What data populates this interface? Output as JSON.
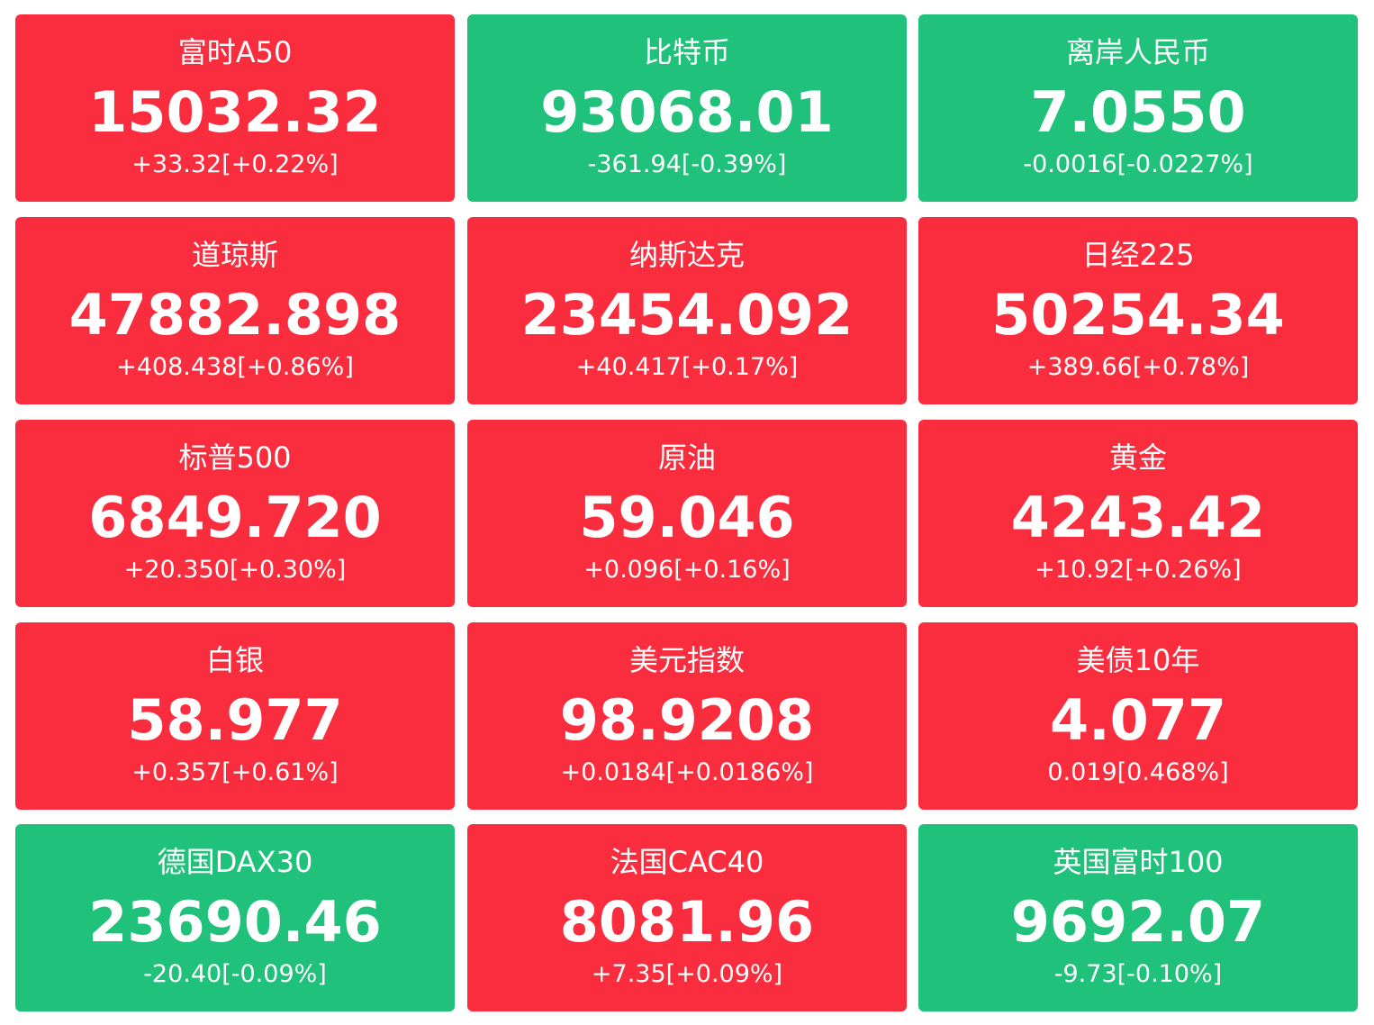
{
  "tiles": [
    {
      "name": "富时A50",
      "price": "15032.32",
      "change": "+33.32[+0.22%]",
      "color": "#fa2d3e"
    },
    {
      "name": "比特币",
      "price": "93068.01",
      "change": "-361.94[-0.39%]",
      "color": "#1fc17b"
    },
    {
      "name": "离岸人民币",
      "price": "7.0550",
      "change": "-0.0016[-0.0227%]",
      "color": "#1fc17b"
    },
    {
      "name": "道琼斯",
      "price": "47882.898",
      "change": "+408.438[+0.86%]",
      "color": "#fa2d3e"
    },
    {
      "name": "纳斯达克",
      "price": "23454.092",
      "change": "+40.417[+0.17%]",
      "color": "#fa2d3e"
    },
    {
      "name": "日经225",
      "price": "50254.34",
      "change": "+389.66[+0.78%]",
      "color": "#fa2d3e"
    },
    {
      "name": "标普500",
      "price": "6849.720",
      "change": "+20.350[+0.30%]",
      "color": "#fa2d3e"
    },
    {
      "name": "原油",
      "price": "59.046",
      "change": "+0.096[+0.16%]",
      "color": "#fa2d3e"
    },
    {
      "name": "黄金",
      "price": "4243.42",
      "change": "+10.92[+0.26%]",
      "color": "#fa2d3e"
    },
    {
      "name": "白银",
      "price": "58.977",
      "change": "+0.357[+0.61%]",
      "color": "#fa2d3e"
    },
    {
      "name": "美元指数",
      "price": "98.9208",
      "change": "+0.0184[+0.0186%]",
      "color": "#fa2d3e"
    },
    {
      "name": "美债10年",
      "price": "4.077",
      "change": "0.019[0.468%]",
      "color": "#fa2d3e"
    },
    {
      "name": "德国DAX30",
      "price": "23690.46",
      "change": "-20.40[-0.09%]",
      "color": "#1fc17b"
    },
    {
      "name": "法国CAC40",
      "price": "8081.96",
      "change": "+7.35[+0.09%]",
      "color": "#fa2d3e"
    },
    {
      "name": "英国富时100",
      "price": "9692.07",
      "change": "-9.73[-0.10%]",
      "color": "#1fc17b"
    }
  ]
}
